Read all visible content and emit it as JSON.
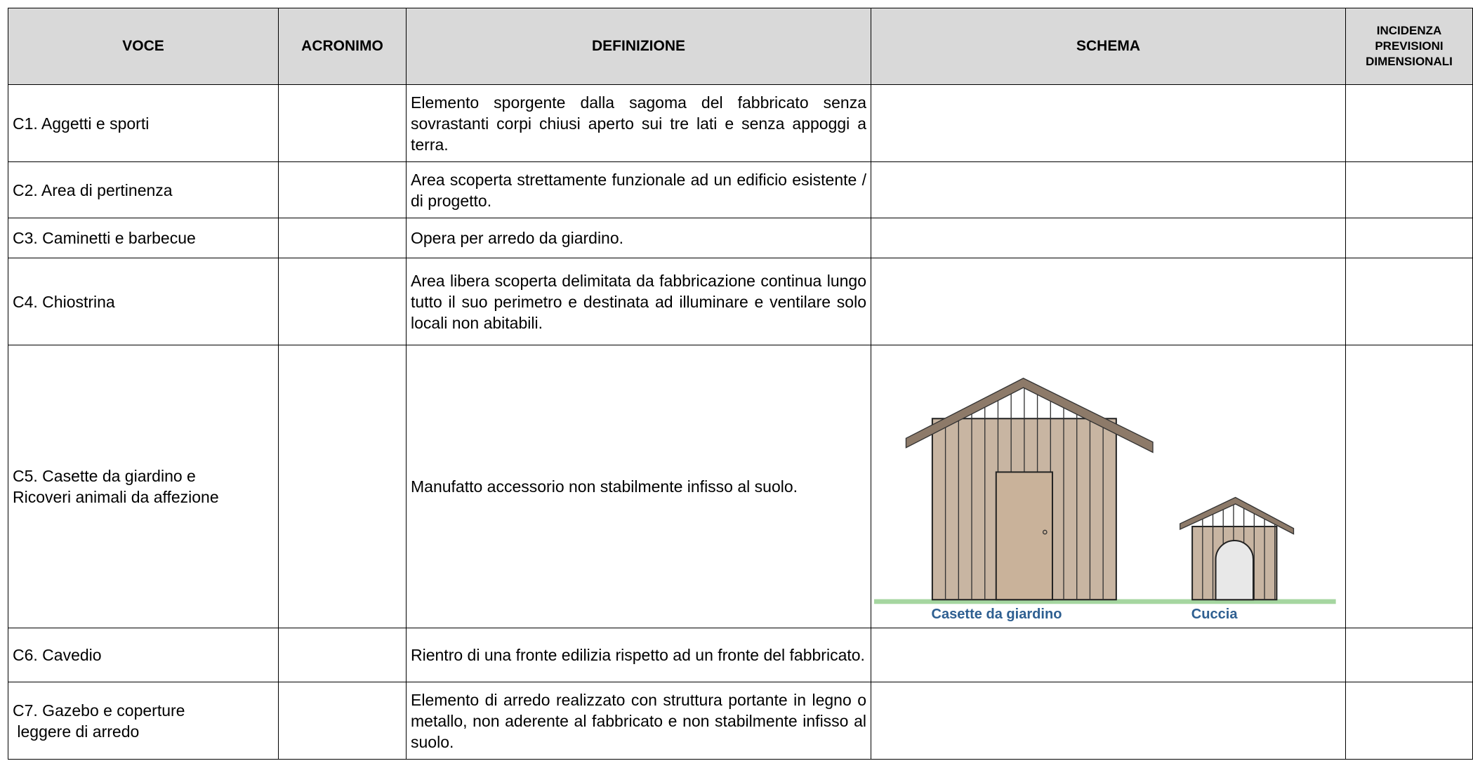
{
  "header": {
    "columns": [
      "VOCE",
      "ACRONIMO",
      "DEFINIZIONE",
      "SCHEMA",
      "INCIDENZA PREVISIONI DIMENSIONALI"
    ]
  },
  "table": {
    "rows": [
      {
        "voce": "C1. Aggetti e sporti",
        "definizione": "Elemento sporgente dalla sagoma del fabbricato senza sovrastanti corpi chiusi aperto sui tre lati e senza appoggi a terra."
      },
      {
        "voce": "C2. Area di pertinenza",
        "definizione": "Area scoperta strettamente funzionale ad un edificio esistente / di progetto."
      },
      {
        "voce": "C3. Caminetti e barbecue",
        "definizione": "Opera per arredo da giardino."
      },
      {
        "voce": "C4. Chiostrina",
        "definizione": "Area libera scoperta delimitata da fabbricazione continua lungo tutto il suo perimetro e destinata ad illuminare e ventilare solo locali non abitabili."
      },
      {
        "voce": "C5. Casette da giardino e\nRicoveri animali da affezione",
        "definizione": "Manufatto accessorio non stabilmente infisso al suolo.",
        "schema": [
          "Casette da giardino",
          "Cuccia"
        ]
      },
      {
        "voce": "C6. Cavedio",
        "definizione": "Rientro di una fronte edilizia rispetto ad un fronte del fabbricato."
      },
      {
        "voce": "C7. Gazebo e coperture\n leggere di arredo",
        "definizione": "Elemento di arredo realizzato con struttura portante in legno o metallo, non aderente al fabbricato e non stabilmente infisso al suolo."
      }
    ]
  }
}
